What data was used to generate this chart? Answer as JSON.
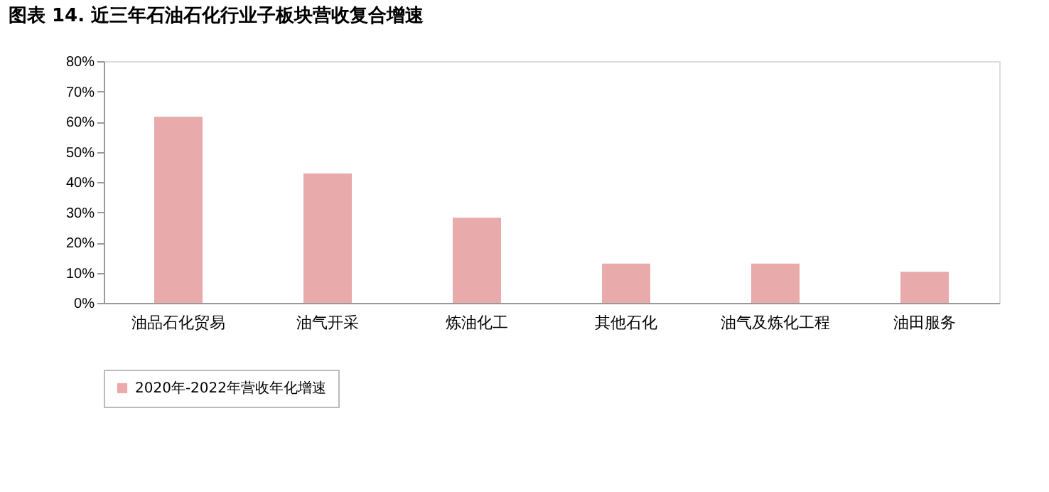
{
  "chart_data": {
    "type": "bar",
    "title": "图表 14. 近三年石油石化行业子板块营收复合增速",
    "categories": [
      "油品石化贸易",
      "油气开采",
      "炼油化工",
      "其他石化",
      "油气及炼化工程",
      "油田服务"
    ],
    "series": [
      {
        "name": "2020年-2022年营收年化增速",
        "color": "#e8aaaa",
        "values": [
          61.6,
          42.8,
          28.2,
          13.0,
          13.0,
          10.3
        ]
      }
    ],
    "ylim": [
      0,
      80
    ],
    "yticks": [
      {
        "value": 0,
        "label": "0%"
      },
      {
        "value": 10,
        "label": "10%"
      },
      {
        "value": 20,
        "label": "20%"
      },
      {
        "value": 30,
        "label": "30%"
      },
      {
        "value": 40,
        "label": "40%"
      },
      {
        "value": 50,
        "label": "50%"
      },
      {
        "value": 60,
        "label": "60%"
      },
      {
        "value": 70,
        "label": "70%"
      },
      {
        "value": 80,
        "label": "80%"
      }
    ],
    "grid": false,
    "legend": "bottom"
  }
}
